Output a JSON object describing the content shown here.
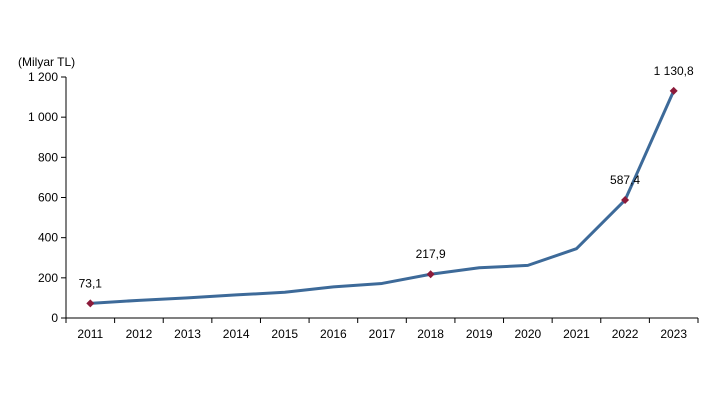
{
  "chart_data": {
    "type": "line",
    "ylabel": "(Milyar TL)",
    "ylim": [
      0,
      1200
    ],
    "yticks": [
      0,
      200,
      400,
      600,
      800,
      1000,
      1200
    ],
    "ytick_labels": [
      "0",
      "200",
      "400",
      "600",
      "800",
      "1 000",
      "1 200"
    ],
    "grid": false,
    "categories": [
      "2011",
      "2012",
      "2013",
      "2014",
      "2015",
      "2016",
      "2017",
      "2018",
      "2019",
      "2020",
      "2021",
      "2022",
      "2023"
    ],
    "series": [
      {
        "values": [
          73.1,
          88,
          100,
          115,
          128,
          155,
          172,
          217.9,
          250,
          262,
          345,
          587.4,
          1130.8
        ],
        "color": "#3d6a99"
      }
    ],
    "markers": [
      {
        "index": 0,
        "label": "73,1"
      },
      {
        "index": 7,
        "label": "217,9"
      },
      {
        "index": 11,
        "label": "587,4"
      },
      {
        "index": 12,
        "label": "1 130,8"
      }
    ],
    "marker_color": "#8b1a3a"
  }
}
